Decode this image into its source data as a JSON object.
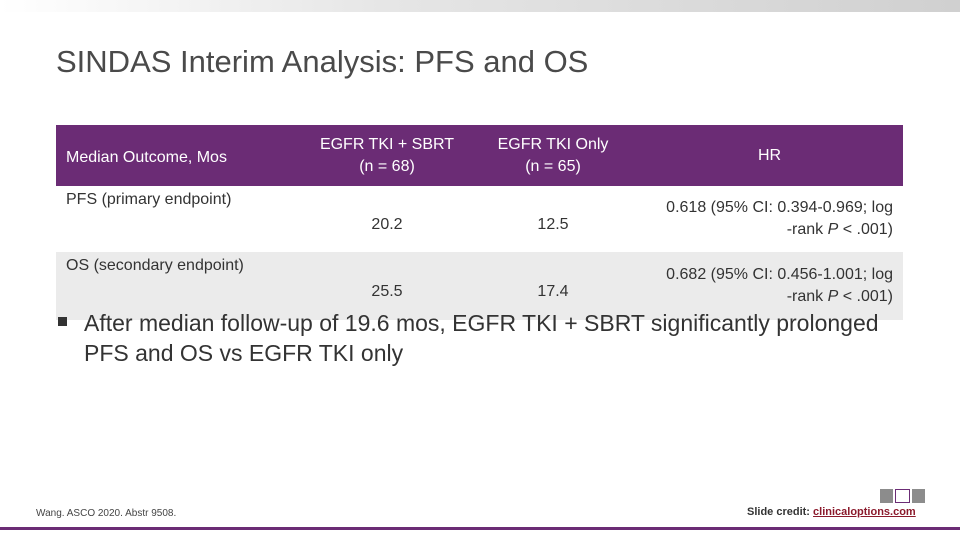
{
  "slide": {
    "title": "SINDAS Interim Analysis: PFS and OS"
  },
  "table": {
    "headers": [
      "Median Outcome, Mos",
      "EGFR TKI + SBRT",
      "(n = 68)",
      "EGFR TKI Only",
      "(n = 65)",
      "HR"
    ],
    "rows": [
      {
        "outcome": "PFS (primary endpoint)",
        "combo": "20.2",
        "tki_only": "12.5",
        "hr_line1": "0.618 (95% CI: 0.394-0.969; log",
        "hr_line2_prefix": "-rank ",
        "hr_p": "P",
        "hr_line2_suffix": " < .001)"
      },
      {
        "outcome": "OS (secondary endpoint)",
        "combo": "25.5",
        "tki_only": "17.4",
        "hr_line1": "0.682 (95% CI: 0.456-1.001; log",
        "hr_line2_prefix": "-rank ",
        "hr_p": "P",
        "hr_line2_suffix": " < .001)"
      }
    ]
  },
  "bullet": {
    "text": "After median follow-up of 19.6 mos, EGFR TKI + SBRT significantly prolonged PFS and OS vs EGFR TKI only"
  },
  "footer": {
    "citation": "Wang. ASCO 2020. Abstr 9508.",
    "credit_label": "Slide credit: ",
    "credit_link": "clinicaloptions.com"
  },
  "colors": {
    "header_purple": "#6b2c75",
    "row_alt": "#ebebeb",
    "link": "#8b1a2c"
  }
}
